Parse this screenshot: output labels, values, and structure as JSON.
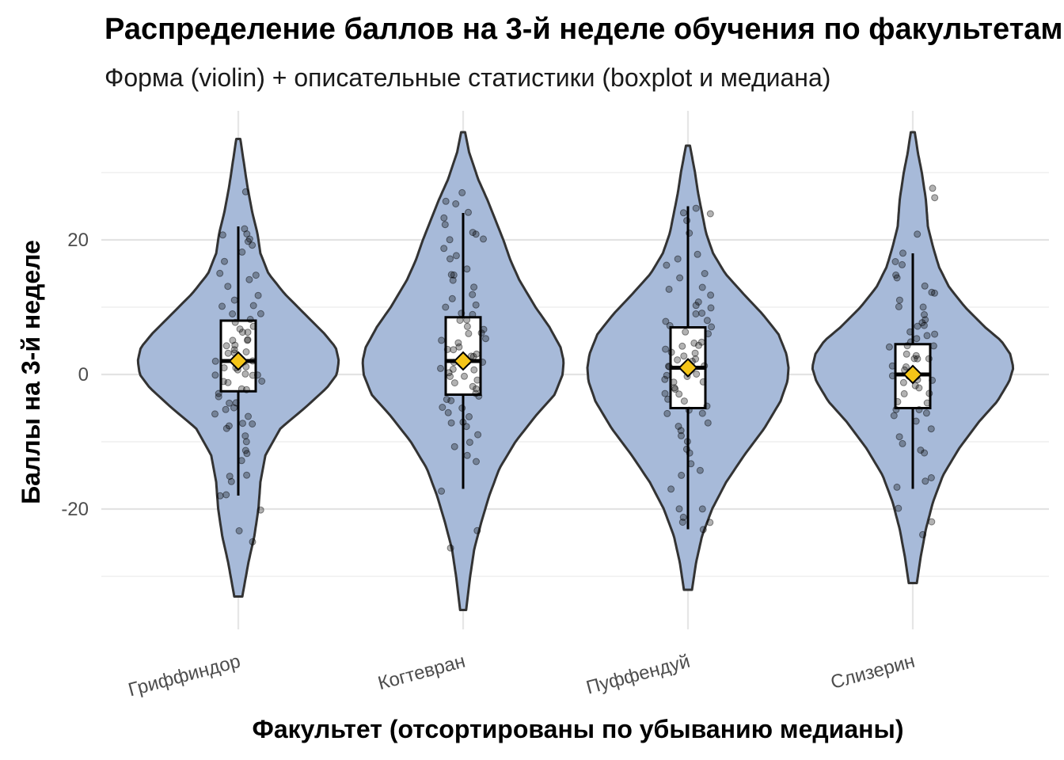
{
  "chart_data": {
    "type": "violin",
    "title": "Распределение баллов на 3-й неделе обучения по факультетам",
    "subtitle": "Форма (violin) + описательные статистики (boxplot и медиана)",
    "xlabel": "Факультет (отсортированы по убыванию медианы)",
    "ylabel": "Баллы на 3-й неделе",
    "ylim": [
      -38,
      40
    ],
    "yticks": [
      -20,
      0,
      20
    ],
    "grid": true,
    "categories": [
      "Гриффиндор",
      "Когтевран",
      "Пуффендуй",
      "Слизерин"
    ],
    "colors": {
      "violin_fill": "#a7bad9",
      "violin_stroke": "#333333",
      "median_marker": "#f5c518",
      "box_fill": "#ffffff",
      "box_stroke": "#000000",
      "points": "#000000"
    },
    "series": [
      {
        "category": "Гриффиндор",
        "box": {
          "q1": -2.5,
          "median": 2,
          "q3": 8,
          "whisker_low": -18,
          "whisker_high": 22
        },
        "median_marker": 2,
        "violin_range": [
          -33,
          35
        ],
        "density": [
          [
            -33,
            0.04
          ],
          [
            -28,
            0.1
          ],
          [
            -24,
            0.16
          ],
          [
            -20,
            0.2
          ],
          [
            -16,
            0.22
          ],
          [
            -12,
            0.27
          ],
          [
            -8,
            0.42
          ],
          [
            -5,
            0.66
          ],
          [
            -2,
            0.88
          ],
          [
            0,
            0.98
          ],
          [
            2,
            1.0
          ],
          [
            4,
            0.97
          ],
          [
            6,
            0.86
          ],
          [
            9,
            0.66
          ],
          [
            12,
            0.46
          ],
          [
            15,
            0.3
          ],
          [
            18,
            0.22
          ],
          [
            21,
            0.19
          ],
          [
            24,
            0.14
          ],
          [
            28,
            0.09
          ],
          [
            32,
            0.05
          ],
          [
            35,
            0.02
          ]
        ],
        "points": [
          27,
          22,
          21,
          21,
          20,
          20,
          19,
          18,
          17,
          15,
          15,
          14,
          13,
          12,
          11,
          10,
          10,
          9,
          9,
          8,
          8,
          7,
          7,
          6,
          6,
          5,
          5,
          5,
          4,
          4,
          4,
          3,
          3,
          3,
          2,
          2,
          2,
          2,
          1,
          1,
          1,
          1,
          0,
          0,
          0,
          0,
          -1,
          -1,
          -1,
          -2,
          -2,
          -3,
          -3,
          -4,
          -4,
          -5,
          -5,
          -6,
          -6,
          -7,
          -7,
          -8,
          -8,
          -9,
          -10,
          -11,
          -12,
          -13,
          -15,
          -15,
          -16,
          -18,
          -18,
          -20,
          -23,
          -25
        ]
      },
      {
        "category": "Когтевран",
        "box": {
          "q1": -3,
          "median": 2,
          "q3": 8.5,
          "whisker_low": -17,
          "whisker_high": 24
        },
        "median_marker": 2,
        "violin_range": [
          -35,
          36
        ],
        "density": [
          [
            -35,
            0.03
          ],
          [
            -30,
            0.07
          ],
          [
            -26,
            0.11
          ],
          [
            -22,
            0.18
          ],
          [
            -18,
            0.26
          ],
          [
            -14,
            0.36
          ],
          [
            -10,
            0.52
          ],
          [
            -6,
            0.73
          ],
          [
            -3,
            0.91
          ],
          [
            0,
            0.99
          ],
          [
            2,
            1.0
          ],
          [
            4,
            0.97
          ],
          [
            7,
            0.86
          ],
          [
            10,
            0.72
          ],
          [
            14,
            0.56
          ],
          [
            17,
            0.47
          ],
          [
            20,
            0.4
          ],
          [
            23,
            0.32
          ],
          [
            26,
            0.24
          ],
          [
            29,
            0.15
          ],
          [
            33,
            0.06
          ],
          [
            36,
            0.02
          ]
        ],
        "points": [
          27,
          26,
          25,
          24,
          23,
          22,
          21,
          21,
          20,
          20,
          19,
          18,
          17,
          16,
          15,
          15,
          14,
          13,
          12,
          11,
          10,
          10,
          9,
          9,
          8,
          8,
          7,
          7,
          6,
          6,
          5,
          5,
          5,
          4,
          4,
          4,
          3,
          3,
          3,
          2,
          2,
          2,
          2,
          1,
          1,
          1,
          0,
          0,
          0,
          -1,
          -1,
          -2,
          -2,
          -3,
          -3,
          -4,
          -4,
          -5,
          -5,
          -6,
          -6,
          -7,
          -7,
          -8,
          -9,
          -10,
          -11,
          -12,
          -13,
          -17,
          -23,
          -26
        ]
      },
      {
        "category": "Пуффендуй",
        "box": {
          "q1": -5,
          "median": 1,
          "q3": 7,
          "whisker_low": -23,
          "whisker_high": 25
        },
        "median_marker": 1,
        "violin_range": [
          -32,
          34
        ],
        "density": [
          [
            -32,
            0.04
          ],
          [
            -28,
            0.08
          ],
          [
            -24,
            0.14
          ],
          [
            -20,
            0.24
          ],
          [
            -16,
            0.38
          ],
          [
            -12,
            0.56
          ],
          [
            -8,
            0.76
          ],
          [
            -4,
            0.92
          ],
          [
            -1,
            0.99
          ],
          [
            1,
            1.0
          ],
          [
            3,
            0.98
          ],
          [
            6,
            0.9
          ],
          [
            9,
            0.74
          ],
          [
            12,
            0.55
          ],
          [
            15,
            0.37
          ],
          [
            18,
            0.25
          ],
          [
            21,
            0.18
          ],
          [
            24,
            0.14
          ],
          [
            27,
            0.1
          ],
          [
            30,
            0.07
          ],
          [
            34,
            0.02
          ]
        ],
        "points": [
          25,
          24,
          24,
          23,
          21,
          18,
          17,
          16,
          15,
          14,
          13,
          13,
          12,
          11,
          10,
          10,
          9,
          9,
          8,
          8,
          7,
          7,
          6,
          6,
          5,
          5,
          4,
          4,
          4,
          3,
          3,
          3,
          2,
          2,
          2,
          1,
          1,
          1,
          0,
          0,
          0,
          -1,
          -1,
          -1,
          -2,
          -2,
          -3,
          -3,
          -4,
          -4,
          -5,
          -5,
          -6,
          -6,
          -7,
          -8,
          -8,
          -9,
          -10,
          -11,
          -12,
          -13,
          -14,
          -15,
          -17,
          -20,
          -20,
          -21,
          -22,
          -22,
          -23
        ]
      },
      {
        "category": "Слизерин",
        "box": {
          "q1": -5,
          "median": 0,
          "q3": 4.5,
          "whisker_low": -17,
          "whisker_high": 18
        },
        "median_marker": 0,
        "violin_range": [
          -31,
          36
        ],
        "density": [
          [
            -31,
            0.04
          ],
          [
            -27,
            0.08
          ],
          [
            -23,
            0.13
          ],
          [
            -19,
            0.2
          ],
          [
            -15,
            0.3
          ],
          [
            -11,
            0.46
          ],
          [
            -7,
            0.66
          ],
          [
            -4,
            0.84
          ],
          [
            -1,
            0.96
          ],
          [
            1,
            1.0
          ],
          [
            3,
            0.97
          ],
          [
            5,
            0.88
          ],
          [
            7,
            0.72
          ],
          [
            10,
            0.52
          ],
          [
            13,
            0.36
          ],
          [
            16,
            0.26
          ],
          [
            19,
            0.2
          ],
          [
            22,
            0.15
          ],
          [
            26,
            0.13
          ],
          [
            30,
            0.09
          ],
          [
            33,
            0.05
          ],
          [
            36,
            0.02
          ]
        ],
        "points": [
          28,
          26,
          21,
          18,
          17,
          16,
          15,
          14,
          13,
          12,
          12,
          11,
          10,
          10,
          9,
          8,
          8,
          7,
          7,
          6,
          6,
          6,
          5,
          5,
          4,
          4,
          4,
          3,
          3,
          2,
          2,
          2,
          1,
          1,
          1,
          0,
          0,
          0,
          0,
          -1,
          -1,
          -1,
          -2,
          -2,
          -3,
          -3,
          -4,
          -4,
          -5,
          -5,
          -6,
          -6,
          -7,
          -8,
          -9,
          -10,
          -11,
          -12,
          -15,
          -16,
          -17,
          -20,
          -22,
          -24
        ]
      }
    ]
  }
}
